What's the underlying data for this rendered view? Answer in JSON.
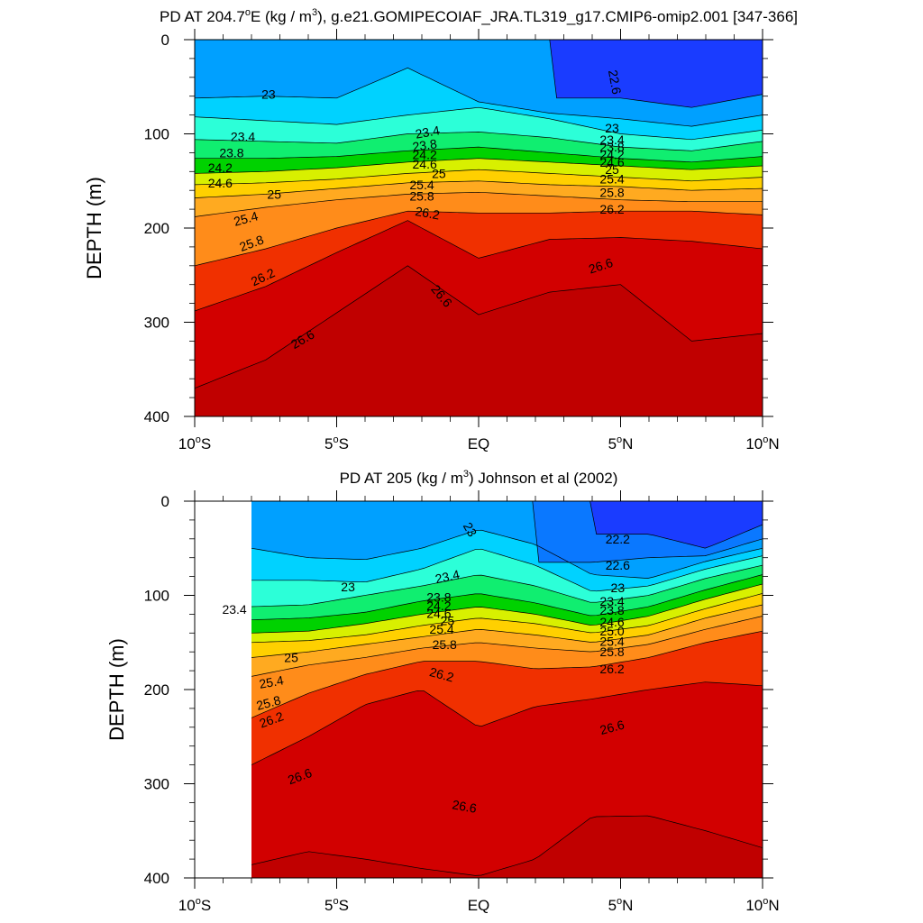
{
  "chart_data": [
    {
      "type": "contour",
      "title": "PD AT 204.7",
      "title_sup1": "o",
      "title_mid": "E (kg / m",
      "title_sup2": "3",
      "title_end": "), g.e21.GOMIPECOIAF_JRA.TL319_g17.CMIP6-omip2.001 [347-366]",
      "ylabel": "DEPTH (m)",
      "xlabel": "",
      "xlim": [
        -10,
        10
      ],
      "ylim": [
        400,
        0
      ],
      "x_ticks": [
        {
          "value": -10,
          "num": "10",
          "deg": "o",
          "hemi": "S"
        },
        {
          "value": -5,
          "num": "5",
          "deg": "o",
          "hemi": "S"
        },
        {
          "value": 0,
          "num": "EQ",
          "deg": "",
          "hemi": ""
        },
        {
          "value": 5,
          "num": "5",
          "deg": "o",
          "hemi": "N"
        },
        {
          "value": 10,
          "num": "10",
          "deg": "o",
          "hemi": "N"
        }
      ],
      "y_ticks": [
        0,
        100,
        200,
        300,
        400
      ],
      "contour_levels": [
        22.2,
        22.6,
        23,
        23.4,
        23.8,
        24.2,
        24.6,
        25,
        25.4,
        25.8,
        26.2,
        26.6
      ],
      "data_x_start": -10,
      "anchor_x": [
        -10,
        -7.5,
        -5,
        -2.5,
        0,
        2.5,
        5,
        7.5,
        10
      ],
      "isopycnals": [
        {
          "level": 22.4,
          "depth": [
            null,
            null,
            null,
            null,
            null,
            null,
            62,
            72,
            58
          ]
        },
        {
          "level": 22.8,
          "depth": [
            62,
            60,
            62,
            30,
            66,
            78,
            84,
            92,
            80
          ]
        },
        {
          "level": 23.2,
          "depth": [
            82,
            86,
            90,
            80,
            72,
            84,
            100,
            106,
            96
          ]
        },
        {
          "level": 23.6,
          "depth": [
            106,
            108,
            110,
            100,
            98,
            104,
            114,
            118,
            108
          ]
        },
        {
          "level": 24.0,
          "depth": [
            126,
            126,
            124,
            118,
            114,
            120,
            126,
            130,
            124
          ]
        },
        {
          "level": 24.4,
          "depth": [
            142,
            140,
            136,
            130,
            126,
            130,
            134,
            138,
            134
          ]
        },
        {
          "level": 24.8,
          "depth": [
            154,
            152,
            148,
            142,
            138,
            142,
            146,
            150,
            146
          ]
        },
        {
          "level": 25.2,
          "depth": [
            168,
            164,
            158,
            152,
            150,
            154,
            156,
            160,
            158
          ]
        },
        {
          "level": 25.6,
          "depth": [
            188,
            178,
            170,
            164,
            162,
            166,
            170,
            172,
            172
          ]
        },
        {
          "level": 26.0,
          "depth": [
            240,
            222,
            200,
            182,
            184,
            184,
            182,
            182,
            186
          ]
        },
        {
          "level": 26.4,
          "depth": [
            288,
            262,
            226,
            192,
            232,
            212,
            210,
            214,
            222
          ]
        },
        {
          "level": 26.8,
          "depth": [
            370,
            340,
            290,
            240,
            292,
            268,
            260,
            320,
            312
          ]
        }
      ],
      "labels": [
        {
          "x": -7.4,
          "y": 58,
          "text": "23",
          "rot": 0
        },
        {
          "x": 4.8,
          "y": 45,
          "text": "22.6",
          "rot": 80
        },
        {
          "x": -8.3,
          "y": 103,
          "text": "23.4",
          "rot": 0
        },
        {
          "x": -8.7,
          "y": 120,
          "text": "23.8",
          "rot": 0
        },
        {
          "x": -9.1,
          "y": 136,
          "text": "24.2",
          "rot": 0
        },
        {
          "x": -9.1,
          "y": 152,
          "text": "24.6",
          "rot": 0
        },
        {
          "x": -7.2,
          "y": 164,
          "text": "25",
          "rot": 0
        },
        {
          "x": -8.2,
          "y": 190,
          "text": "25.4",
          "rot": -15
        },
        {
          "x": -8.0,
          "y": 216,
          "text": "25.8",
          "rot": -20
        },
        {
          "x": -7.6,
          "y": 252,
          "text": "26.2",
          "rot": -25
        },
        {
          "x": -6.2,
          "y": 318,
          "text": "26.6",
          "rot": -30
        },
        {
          "x": -1.8,
          "y": 98,
          "text": "23.4",
          "rot": -10
        },
        {
          "x": -1.9,
          "y": 112,
          "text": "23.8",
          "rot": -8
        },
        {
          "x": -1.9,
          "y": 122,
          "text": "24.2",
          "rot": 0
        },
        {
          "x": -1.9,
          "y": 132,
          "text": "24.6",
          "rot": 0
        },
        {
          "x": -1.4,
          "y": 142,
          "text": "25",
          "rot": 0
        },
        {
          "x": -2.0,
          "y": 154,
          "text": "25.4",
          "rot": 0
        },
        {
          "x": -2.0,
          "y": 166,
          "text": "25.8",
          "rot": 0
        },
        {
          "x": -1.8,
          "y": 184,
          "text": "26.2",
          "rot": 10
        },
        {
          "x": -1.3,
          "y": 272,
          "text": "26.6",
          "rot": 50
        },
        {
          "x": 4.7,
          "y": 94,
          "text": "23",
          "rot": 0
        },
        {
          "x": 4.7,
          "y": 106,
          "text": "23.4",
          "rot": 0
        },
        {
          "x": 4.7,
          "y": 114,
          "text": "23.8",
          "rot": 0
        },
        {
          "x": 4.7,
          "y": 122,
          "text": "24.2",
          "rot": 0
        },
        {
          "x": 4.7,
          "y": 130,
          "text": "24.6",
          "rot": 0
        },
        {
          "x": 4.7,
          "y": 138,
          "text": "25",
          "rot": 0
        },
        {
          "x": 4.7,
          "y": 148,
          "text": "25.4",
          "rot": 0
        },
        {
          "x": 4.7,
          "y": 162,
          "text": "25.8",
          "rot": 0
        },
        {
          "x": 4.7,
          "y": 180,
          "text": "26.2",
          "rot": 0
        },
        {
          "x": 4.3,
          "y": 240,
          "text": "26.6",
          "rot": -18
        }
      ]
    },
    {
      "type": "contour",
      "title": "PD AT 205 (kg / m",
      "title_sup1": "3",
      "title_end": ") Johnson et al (2002)",
      "ylabel": "DEPTH (m)",
      "xlabel": "",
      "xlim": [
        -10,
        10
      ],
      "ylim": [
        400,
        0
      ],
      "x_ticks": [
        {
          "value": -10,
          "num": "10",
          "deg": "o",
          "hemi": "S"
        },
        {
          "value": -5,
          "num": "5",
          "deg": "o",
          "hemi": "S"
        },
        {
          "value": 0,
          "num": "EQ",
          "deg": "",
          "hemi": ""
        },
        {
          "value": 5,
          "num": "5",
          "deg": "o",
          "hemi": "N"
        },
        {
          "value": 10,
          "num": "10",
          "deg": "o",
          "hemi": "N"
        }
      ],
      "y_ticks": [
        0,
        100,
        200,
        300,
        400
      ],
      "contour_levels": [
        22.2,
        22.6,
        23,
        23.4,
        23.8,
        24.2,
        24.6,
        25,
        25.4,
        25.8,
        26.2,
        26.6
      ],
      "data_x_start": -8,
      "anchor_x": [
        -8,
        -6,
        -4,
        -2,
        0,
        2,
        4,
        6,
        8,
        10
      ],
      "isopycnals": [
        {
          "level": 22.2,
          "depth": [
            null,
            null,
            null,
            null,
            null,
            null,
            null,
            35,
            50,
            25
          ]
        },
        {
          "level": 22.4,
          "depth": [
            null,
            null,
            null,
            null,
            null,
            null,
            65,
            60,
            58,
            40
          ]
        },
        {
          "level": 22.8,
          "depth": [
            50,
            60,
            62,
            50,
            30,
            46,
            78,
            82,
            64,
            50
          ]
        },
        {
          "level": 23.2,
          "depth": [
            84,
            84,
            86,
            72,
            50,
            68,
            96,
            90,
            72,
            58
          ]
        },
        {
          "level": 23.6,
          "depth": [
            112,
            110,
            100,
            90,
            78,
            90,
            108,
            100,
            82,
            68
          ]
        },
        {
          "level": 24.0,
          "depth": [
            126,
            124,
            118,
            106,
            98,
            108,
            122,
            112,
            94,
            78
          ]
        },
        {
          "level": 24.4,
          "depth": [
            140,
            138,
            130,
            120,
            112,
            120,
            132,
            122,
            104,
            88
          ]
        },
        {
          "level": 24.8,
          "depth": [
            150,
            148,
            142,
            132,
            124,
            130,
            140,
            132,
            114,
            98
          ]
        },
        {
          "level": 25.2,
          "depth": [
            166,
            160,
            152,
            144,
            136,
            142,
            150,
            142,
            124,
            110
          ]
        },
        {
          "level": 25.6,
          "depth": [
            186,
            174,
            166,
            156,
            150,
            156,
            160,
            152,
            136,
            122
          ]
        },
        {
          "level": 26.0,
          "depth": [
            230,
            204,
            184,
            170,
            170,
            178,
            176,
            166,
            150,
            138
          ]
        },
        {
          "level": 26.4,
          "depth": [
            280,
            250,
            216,
            200,
            240,
            218,
            210,
            200,
            192,
            196
          ]
        },
        {
          "level": 26.8,
          "depth": [
            386,
            372,
            380,
            390,
            398,
            380,
            335,
            334,
            350,
            368
          ]
        }
      ],
      "labels": [
        {
          "x": -0.3,
          "y": 30,
          "text": "23",
          "rot": 60
        },
        {
          "x": 4.9,
          "y": 40,
          "text": "22.2",
          "rot": 0
        },
        {
          "x": 4.9,
          "y": 68,
          "text": "22.6",
          "rot": 0
        },
        {
          "x": -4.6,
          "y": 91,
          "text": "23",
          "rot": 0
        },
        {
          "x": 4.9,
          "y": 92,
          "text": "23",
          "rot": 0
        },
        {
          "x": -1.1,
          "y": 80,
          "text": "23.4",
          "rot": -12
        },
        {
          "x": -8.6,
          "y": 115,
          "text": "23.4",
          "rot": 0
        },
        {
          "x": -1.4,
          "y": 102,
          "text": "23.8",
          "rot": 0
        },
        {
          "x": -1.4,
          "y": 111,
          "text": "24.2",
          "rot": 0
        },
        {
          "x": -1.4,
          "y": 119,
          "text": "24.6",
          "rot": 0
        },
        {
          "x": -1.1,
          "y": 127,
          "text": "25",
          "rot": 0
        },
        {
          "x": -1.3,
          "y": 136,
          "text": "25.4",
          "rot": 0
        },
        {
          "x": -1.2,
          "y": 152,
          "text": "25.8",
          "rot": 0
        },
        {
          "x": -1.3,
          "y": 184,
          "text": "26.2",
          "rot": 15
        },
        {
          "x": 4.7,
          "y": 106,
          "text": "23.4",
          "rot": 0
        },
        {
          "x": 4.7,
          "y": 116,
          "text": "23.8",
          "rot": 0
        },
        {
          "x": 4.7,
          "y": 128,
          "text": "24.6",
          "rot": 0
        },
        {
          "x": 4.7,
          "y": 138,
          "text": "25.0",
          "rot": 0
        },
        {
          "x": 4.7,
          "y": 149,
          "text": "25.4",
          "rot": 0
        },
        {
          "x": 4.7,
          "y": 160,
          "text": "25.8",
          "rot": 0
        },
        {
          "x": 4.7,
          "y": 178,
          "text": "26.2",
          "rot": 0
        },
        {
          "x": -6.6,
          "y": 166,
          "text": "25",
          "rot": 0
        },
        {
          "x": -7.3,
          "y": 192,
          "text": "25.4",
          "rot": -10
        },
        {
          "x": -7.4,
          "y": 214,
          "text": "25.8",
          "rot": -15
        },
        {
          "x": -7.3,
          "y": 232,
          "text": "26.2",
          "rot": -20
        },
        {
          "x": -6.3,
          "y": 292,
          "text": "26.6",
          "rot": -20
        },
        {
          "x": -0.5,
          "y": 324,
          "text": "26.6",
          "rot": 10
        },
        {
          "x": 4.7,
          "y": 240,
          "text": "26.6",
          "rot": -15
        }
      ]
    }
  ]
}
